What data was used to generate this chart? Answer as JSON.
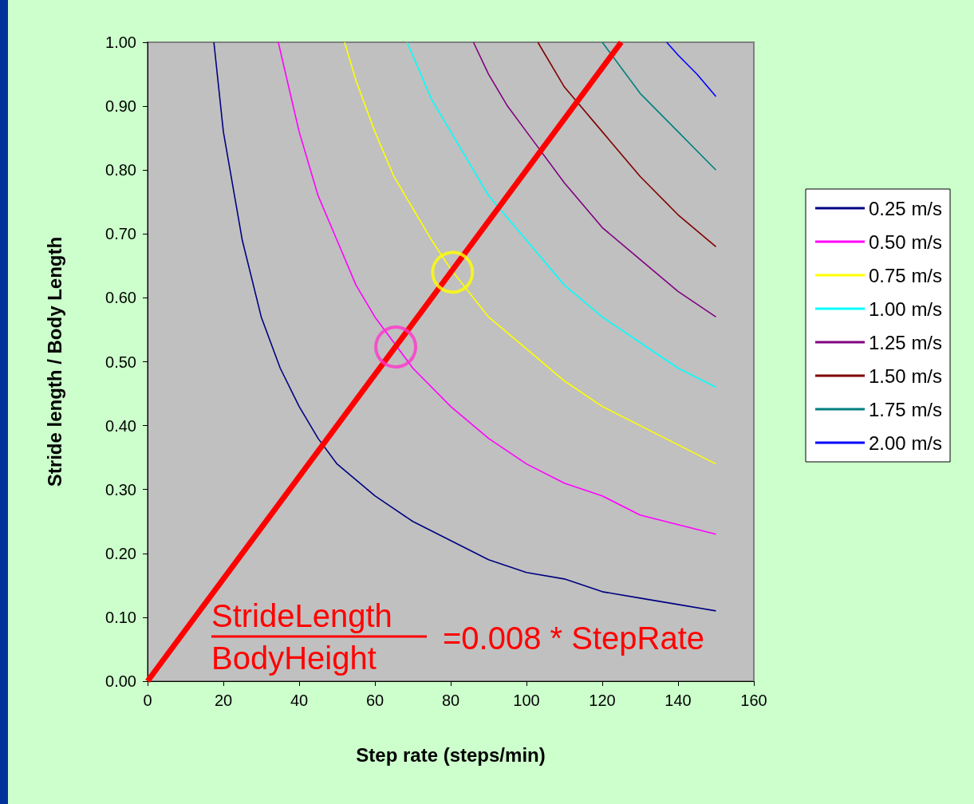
{
  "chart_data": {
    "type": "line",
    "xlabel": "Step rate (steps/min)",
    "ylabel": "Stride length / Body Length",
    "xlim": [
      0,
      160
    ],
    "xticks": [
      0,
      20,
      40,
      60,
      80,
      100,
      120,
      140,
      160
    ],
    "ylim": [
      0,
      1
    ],
    "yticks": [
      {
        "value": 0,
        "label": "0.00"
      },
      {
        "value": 0.1,
        "label": "0.10"
      },
      {
        "value": 0.2,
        "label": "0.20"
      },
      {
        "value": 0.3,
        "label": "0.30"
      },
      {
        "value": 0.4,
        "label": "0.40"
      },
      {
        "value": 0.5,
        "label": "0.50"
      },
      {
        "value": 0.6,
        "label": "0.60"
      },
      {
        "value": 0.7,
        "label": "0.70"
      },
      {
        "value": 0.8,
        "label": "0.80"
      },
      {
        "value": 0.9,
        "label": "0.90"
      },
      {
        "value": 1,
        "label": "1.00"
      }
    ],
    "grid": false,
    "legend": "right",
    "marker": "none",
    "line_style": "solid",
    "annotations": [
      "StrideLength",
      "BodyHeight",
      "=0.008 * StepRate"
    ],
    "series": [
      {
        "name": "0.25 m/s",
        "color": "#000080",
        "x": [
          17.5,
          20,
          25,
          30,
          35,
          40,
          45,
          50,
          60,
          70,
          80,
          90,
          100,
          110,
          120,
          130,
          140,
          150
        ],
        "values": [
          1.0,
          0.86,
          0.69,
          0.57,
          0.49,
          0.43,
          0.38,
          0.34,
          0.29,
          0.25,
          0.22,
          0.19,
          0.17,
          0.16,
          0.14,
          0.13,
          0.12,
          0.11
        ]
      },
      {
        "name": "0.50 m/s",
        "color": "#ff00ff",
        "x": [
          34.5,
          40,
          45,
          50,
          55,
          60,
          70,
          80,
          90,
          100,
          110,
          120,
          130,
          140,
          150
        ],
        "values": [
          1.0,
          0.86,
          0.76,
          0.69,
          0.62,
          0.57,
          0.49,
          0.43,
          0.38,
          0.34,
          0.31,
          0.29,
          0.26,
          0.245,
          0.23
        ]
      },
      {
        "name": "0.75 m/s",
        "color": "#ffff00",
        "x": [
          52,
          55,
          60,
          65,
          70,
          75,
          80,
          90,
          100,
          110,
          120,
          130,
          140,
          150
        ],
        "values": [
          1.0,
          0.94,
          0.86,
          0.79,
          0.74,
          0.69,
          0.645,
          0.57,
          0.52,
          0.47,
          0.43,
          0.4,
          0.37,
          0.34
        ]
      },
      {
        "name": "1.00 m/s",
        "color": "#00ffff",
        "x": [
          68.5,
          75,
          80,
          85,
          90,
          100,
          110,
          120,
          130,
          140,
          150
        ],
        "values": [
          1.0,
          0.91,
          0.86,
          0.81,
          0.76,
          0.69,
          0.62,
          0.57,
          0.53,
          0.49,
          0.46
        ]
      },
      {
        "name": "1.25 m/s",
        "color": "#800080",
        "x": [
          86,
          90,
          95,
          100,
          110,
          120,
          130,
          140,
          150
        ],
        "values": [
          1.0,
          0.95,
          0.9,
          0.86,
          0.78,
          0.71,
          0.66,
          0.61,
          0.57
        ]
      },
      {
        "name": "1.50 m/s",
        "color": "#800000",
        "x": [
          103,
          110,
          120,
          130,
          140,
          150
        ],
        "values": [
          1.0,
          0.93,
          0.86,
          0.79,
          0.73,
          0.68
        ]
      },
      {
        "name": "1.75 m/s",
        "color": "#008080",
        "x": [
          120,
          130,
          140,
          150
        ],
        "values": [
          1.0,
          0.92,
          0.86,
          0.8
        ]
      },
      {
        "name": "2.00 m/s",
        "color": "#0000ff",
        "x": [
          137,
          140,
          145,
          150
        ],
        "values": [
          1.0,
          0.98,
          0.95,
          0.915
        ]
      },
      {
        "color": "#ff0000",
        "x": [
          0,
          125
        ],
        "values": [
          0,
          1.0
        ]
      },
      {
        "type": "scatter",
        "marker": "circle",
        "color": "#ff33cc",
        "x": [
          65.5
        ],
        "values": [
          0.523
        ]
      },
      {
        "type": "scatter",
        "marker": "circle",
        "color": "#ffff00",
        "x": [
          80.5
        ],
        "values": [
          0.64
        ]
      }
    ]
  }
}
